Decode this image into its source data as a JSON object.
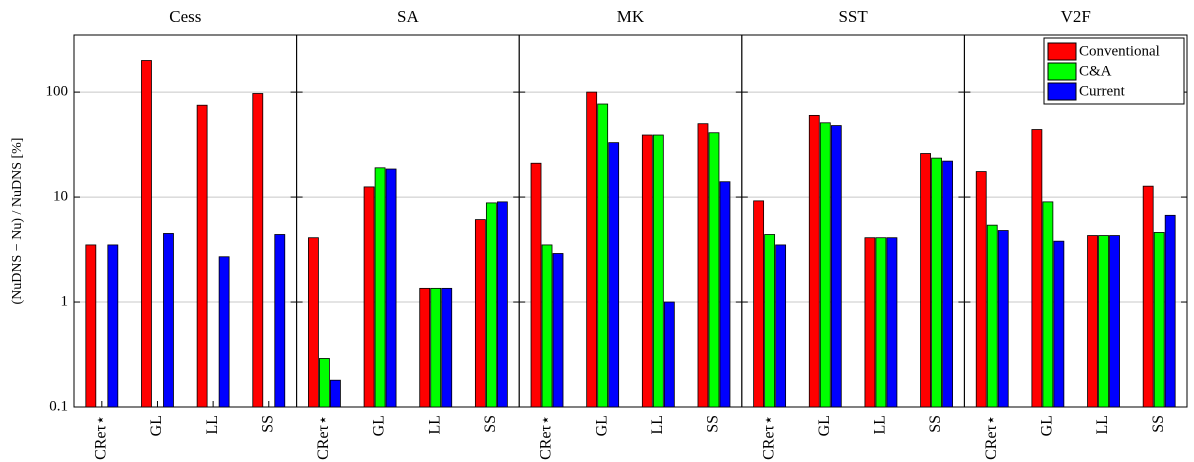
{
  "chart_data": [
    {
      "type": "bar",
      "title": "Cess",
      "ylabel": "(NuDNS − Nu) / NuDNS   [%]",
      "categories": [
        "CReτ⋆",
        "GL",
        "LL",
        "SS"
      ],
      "series": [
        {
          "color": "#ff0000",
          "values": [
            3.5,
            200,
            75,
            97
          ]
        },
        {
          "color": "#00ff00",
          "values": [
            null,
            null,
            null,
            null
          ]
        },
        {
          "color": "#0000ff",
          "values": [
            3.5,
            4.5,
            2.7,
            4.4
          ]
        }
      ],
      "log": true,
      "grid": true,
      "ylim": [
        0.1,
        350
      ],
      "yticks": [
        0.1,
        1,
        10,
        100
      ]
    },
    {
      "type": "bar",
      "title": "SA",
      "categories": [
        "CReτ⋆",
        "GL",
        "LL",
        "SS"
      ],
      "series": [
        {
          "color": "#ff0000",
          "values": [
            4.1,
            12.5,
            1.35,
            6.1
          ]
        },
        {
          "color": "#00ff00",
          "values": [
            0.29,
            19,
            1.35,
            8.8
          ]
        },
        {
          "color": "#0000ff",
          "values": [
            0.18,
            18.5,
            1.35,
            9
          ]
        }
      ],
      "log": true,
      "grid": true,
      "ylim": [
        0.1,
        350
      ],
      "yticks": [
        0.1,
        1,
        10,
        100
      ]
    },
    {
      "type": "bar",
      "title": "MK",
      "categories": [
        "CReτ⋆",
        "GL",
        "LL",
        "SS"
      ],
      "series": [
        {
          "color": "#ff0000",
          "values": [
            21,
            100,
            39,
            50
          ]
        },
        {
          "color": "#00ff00",
          "values": [
            3.5,
            77,
            39,
            41
          ]
        },
        {
          "color": "#0000ff",
          "values": [
            2.9,
            33,
            1.0,
            14
          ]
        }
      ],
      "log": true,
      "grid": true,
      "ylim": [
        0.1,
        350
      ],
      "yticks": [
        0.1,
        1,
        10,
        100
      ]
    },
    {
      "type": "bar",
      "title": "SST",
      "categories": [
        "CReτ⋆",
        "GL",
        "LL",
        "SS"
      ],
      "series": [
        {
          "color": "#ff0000",
          "values": [
            9.2,
            60,
            4.1,
            26
          ]
        },
        {
          "color": "#00ff00",
          "values": [
            4.4,
            51,
            4.1,
            23.5
          ]
        },
        {
          "color": "#0000ff",
          "values": [
            3.5,
            48,
            4.1,
            22
          ]
        }
      ],
      "log": true,
      "grid": true,
      "ylim": [
        0.1,
        350
      ],
      "yticks": [
        0.1,
        1,
        10,
        100
      ]
    },
    {
      "type": "bar",
      "title": "V2F",
      "categories": [
        "CReτ⋆",
        "GL",
        "LL",
        "SS"
      ],
      "series": [
        {
          "name": "Conventional",
          "color": "#ff0000",
          "values": [
            17.5,
            44,
            4.3,
            12.7
          ]
        },
        {
          "name": "C&A",
          "color": "#00ff00",
          "values": [
            5.4,
            9,
            4.3,
            4.6
          ]
        },
        {
          "name": "Current",
          "color": "#0000ff",
          "values": [
            4.8,
            3.8,
            4.3,
            6.7
          ]
        }
      ],
      "log": true,
      "grid": true,
      "ylim": [
        0.1,
        350
      ],
      "yticks": [
        0.1,
        1,
        10,
        100
      ],
      "legend": "upper right"
    }
  ]
}
